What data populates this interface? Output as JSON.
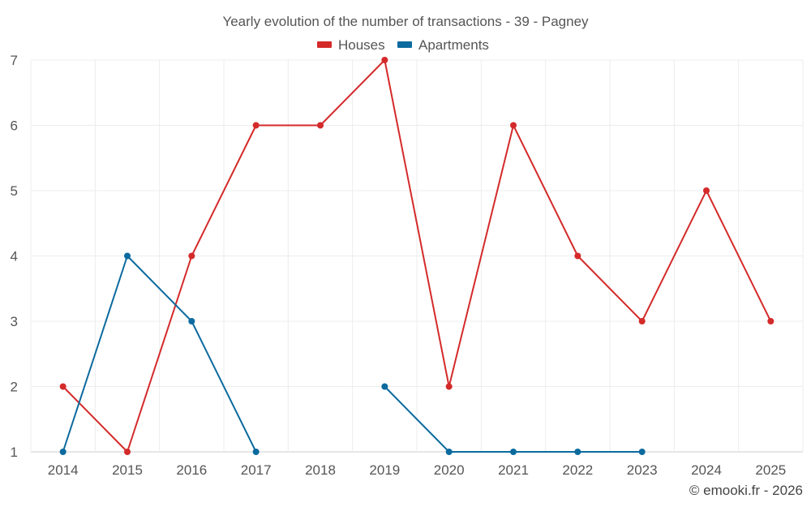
{
  "chart_data": {
    "type": "line",
    "title": "Yearly evolution of the number of transactions - 39 - Pagney",
    "categories": [
      "2014",
      "2015",
      "2016",
      "2017",
      "2018",
      "2019",
      "2020",
      "2021",
      "2022",
      "2023",
      "2024",
      "2025"
    ],
    "series": [
      {
        "name": "Houses",
        "color": "#d42a2a",
        "values": [
          2,
          1,
          4,
          6,
          6,
          7,
          2,
          6,
          4,
          3,
          5,
          3
        ]
      },
      {
        "name": "Apartments",
        "color": "#0b6a9e",
        "values": [
          1,
          4,
          3,
          1,
          null,
          2,
          1,
          1,
          1,
          1,
          null,
          null
        ]
      }
    ],
    "ylim": [
      1,
      7
    ],
    "yticks": [
      1,
      2,
      3,
      4,
      5,
      6,
      7
    ],
    "grid": true,
    "legend": "top-center",
    "xlabel": "",
    "ylabel": ""
  },
  "credit": "© emooki.fr - 2026"
}
